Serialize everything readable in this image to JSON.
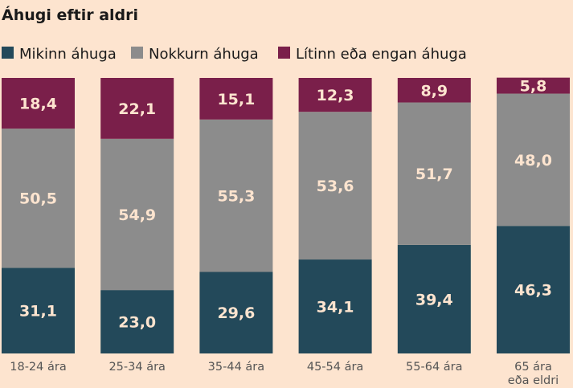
{
  "chart_data": {
    "type": "bar",
    "stacked": true,
    "percent": true,
    "title": "Áhugi eftir aldri",
    "xlabel": "",
    "ylabel": "",
    "ylim": [
      0,
      100
    ],
    "grid": false,
    "legend_position": "top-left",
    "categories": [
      [
        "18-24 ára"
      ],
      [
        "25-34 ára"
      ],
      [
        "35-44 ára"
      ],
      [
        "45-54 ára"
      ],
      [
        "55-64 ára"
      ],
      [
        "65 ára",
        "eða eldri"
      ]
    ],
    "series": [
      {
        "name": "Mikinn áhuga",
        "color": "#23495a",
        "values": [
          31.1,
          23.0,
          29.6,
          34.1,
          39.4,
          46.3
        ],
        "labels": [
          "31,1",
          "23,0",
          "29,6",
          "34,1",
          "39,4",
          "46,3"
        ]
      },
      {
        "name": "Nokkurn áhuga",
        "color": "#8c8c8c",
        "values": [
          50.5,
          54.9,
          55.3,
          53.6,
          51.7,
          48.0
        ],
        "labels": [
          "50,5",
          "54,9",
          "55,3",
          "53,6",
          "51,7",
          "48,0"
        ]
      },
      {
        "name": "Lítinn eða engan áhuga",
        "color": "#7a1f4a",
        "values": [
          18.4,
          22.1,
          15.1,
          12.3,
          8.9,
          5.8
        ],
        "labels": [
          "18,4",
          "22,1",
          "15,1",
          "12,3",
          "8,9",
          "5,8"
        ]
      }
    ]
  }
}
